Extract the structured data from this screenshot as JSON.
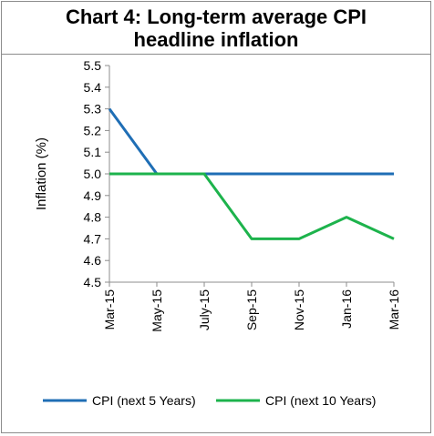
{
  "chart_data": {
    "type": "line",
    "title": "Chart 4: Long-term average CPI headline inflation",
    "ylabel": "Inflation (%)",
    "xlabel": "",
    "categories": [
      "Mar-15",
      "May-15",
      "July-15",
      "Sep-15",
      "Nov-15",
      "Jan-16",
      "Mar-16"
    ],
    "ylim": [
      4.5,
      5.5
    ],
    "yticks": [
      "5.5",
      "5.4",
      "5.3",
      "5.2",
      "5.1",
      "5.0",
      "4.9",
      "4.8",
      "4.7",
      "4.6",
      "4.5"
    ],
    "grid": false,
    "legend_position": "bottom",
    "series": [
      {
        "name": "CPI (next 5 Years)",
        "color": "#1f6eb5",
        "values": [
          5.3,
          5.0,
          5.0,
          5.0,
          5.0,
          5.0,
          5.0
        ]
      },
      {
        "name": "CPI (next 10 Years)",
        "color": "#1db34c",
        "values": [
          5.0,
          5.0,
          5.0,
          4.7,
          4.7,
          4.8,
          4.7
        ]
      }
    ]
  }
}
